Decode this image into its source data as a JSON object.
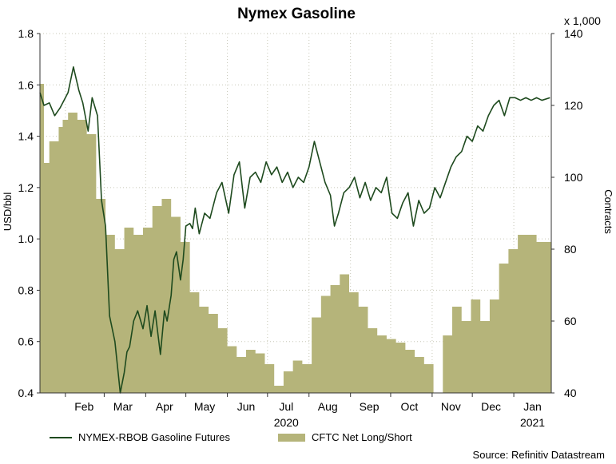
{
  "chart_data": {
    "type": "line",
    "title": "Nymex Gasoline",
    "ylabel": "USD/bbl",
    "y2label": "Contracts",
    "y2_multiplier_label": "x 1,000",
    "ylim": [
      0.4,
      1.8
    ],
    "y2lim": [
      40,
      140
    ],
    "yticks": [
      "0.4",
      "0.6",
      "0.8",
      "1.0",
      "1.2",
      "1.4",
      "1.6",
      "1.8"
    ],
    "y2ticks": [
      "40",
      "60",
      "80",
      "100",
      "120",
      "140"
    ],
    "grid": true,
    "legend_placement": "bottom-left",
    "month_labels": [
      "Feb",
      "Mar",
      "Apr",
      "May",
      "Jun",
      "Jul",
      "Aug",
      "Sep",
      "Oct",
      "Nov",
      "Dec",
      "Jan"
    ],
    "year_labels": [
      "2020",
      "2021"
    ],
    "x_range": [
      "2020-01-13",
      "2021-01-29"
    ],
    "series": [
      {
        "name": "NYMEX-RBOB Gasoline Futures",
        "axis": "left",
        "color": "#1e4a1e",
        "x": [
          "2020-01-13",
          "2020-01-16",
          "2020-01-20",
          "2020-01-24",
          "2020-01-28",
          "2020-02-03",
          "2020-02-07",
          "2020-02-11",
          "2020-02-14",
          "2020-02-18",
          "2020-02-21",
          "2020-02-25",
          "2020-02-28",
          "2020-03-02",
          "2020-03-05",
          "2020-03-07",
          "2020-03-09",
          "2020-03-11",
          "2020-03-13",
          "2020-03-16",
          "2020-03-18",
          "2020-03-20",
          "2020-03-23",
          "2020-03-26",
          "2020-03-30",
          "2020-04-02",
          "2020-04-05",
          "2020-04-08",
          "2020-04-12",
          "2020-04-15",
          "2020-04-17",
          "2020-04-20",
          "2020-04-22",
          "2020-04-24",
          "2020-04-27",
          "2020-04-29",
          "2020-05-01",
          "2020-05-04",
          "2020-05-06",
          "2020-05-08",
          "2020-05-11",
          "2020-05-15",
          "2020-05-19",
          "2020-05-24",
          "2020-05-28",
          "2020-06-02",
          "2020-06-06",
          "2020-06-10",
          "2020-06-14",
          "2020-06-18",
          "2020-06-22",
          "2020-06-26",
          "2020-06-30",
          "2020-07-04",
          "2020-07-08",
          "2020-07-12",
          "2020-07-16",
          "2020-07-20",
          "2020-07-24",
          "2020-07-28",
          "2020-08-01",
          "2020-08-05",
          "2020-08-09",
          "2020-08-13",
          "2020-08-17",
          "2020-08-20",
          "2020-08-23",
          "2020-08-27",
          "2020-08-31",
          "2020-09-04",
          "2020-09-08",
          "2020-09-12",
          "2020-09-16",
          "2020-09-20",
          "2020-09-24",
          "2020-09-28",
          "2020-10-02",
          "2020-10-06",
          "2020-10-10",
          "2020-10-14",
          "2020-10-18",
          "2020-10-22",
          "2020-10-26",
          "2020-10-30",
          "2020-11-03",
          "2020-11-07",
          "2020-11-11",
          "2020-11-15",
          "2020-11-19",
          "2020-11-23",
          "2020-11-27",
          "2020-12-01",
          "2020-12-05",
          "2020-12-09",
          "2020-12-13",
          "2020-12-17",
          "2020-12-21",
          "2020-12-25",
          "2020-12-29",
          "2021-01-02",
          "2021-01-06",
          "2021-01-10",
          "2021-01-14",
          "2021-01-18",
          "2021-01-22",
          "2021-01-28"
        ],
        "values": [
          1.57,
          1.52,
          1.53,
          1.48,
          1.51,
          1.57,
          1.67,
          1.58,
          1.53,
          1.42,
          1.55,
          1.48,
          1.15,
          1.05,
          0.7,
          0.65,
          0.6,
          0.5,
          0.4,
          0.48,
          0.56,
          0.58,
          0.68,
          0.72,
          0.65,
          0.74,
          0.62,
          0.72,
          0.55,
          0.72,
          0.68,
          0.78,
          0.92,
          0.95,
          0.84,
          0.92,
          1.05,
          1.06,
          1.04,
          1.12,
          1.02,
          1.1,
          1.08,
          1.18,
          1.22,
          1.1,
          1.25,
          1.3,
          1.12,
          1.24,
          1.26,
          1.22,
          1.3,
          1.25,
          1.28,
          1.22,
          1.26,
          1.2,
          1.24,
          1.22,
          1.28,
          1.38,
          1.3,
          1.22,
          1.17,
          1.05,
          1.1,
          1.18,
          1.2,
          1.24,
          1.16,
          1.22,
          1.15,
          1.2,
          1.18,
          1.24,
          1.1,
          1.08,
          1.14,
          1.18,
          1.05,
          1.15,
          1.1,
          1.12,
          1.2,
          1.16,
          1.22,
          1.28,
          1.32,
          1.34,
          1.4,
          1.38,
          1.44,
          1.42,
          1.48,
          1.52,
          1.54,
          1.48,
          1.55,
          1.55,
          1.54,
          1.55,
          1.54,
          1.55,
          1.54,
          1.55
        ]
      },
      {
        "name": "CFTC Net Long/Short",
        "axis": "right",
        "color": "#b5b47a",
        "type": "step-area",
        "x": [
          "2020-01-13",
          "2020-01-16",
          "2020-01-20",
          "2020-01-27",
          "2020-01-30",
          "2020-02-03",
          "2020-02-10",
          "2020-02-17",
          "2020-02-24",
          "2020-03-02",
          "2020-03-09",
          "2020-03-16",
          "2020-03-23",
          "2020-03-30",
          "2020-04-06",
          "2020-04-13",
          "2020-04-20",
          "2020-04-27",
          "2020-05-04",
          "2020-05-11",
          "2020-05-18",
          "2020-05-25",
          "2020-06-01",
          "2020-06-08",
          "2020-06-15",
          "2020-06-22",
          "2020-06-29",
          "2020-07-06",
          "2020-07-13",
          "2020-07-20",
          "2020-07-27",
          "2020-08-03",
          "2020-08-10",
          "2020-08-17",
          "2020-08-24",
          "2020-08-31",
          "2020-09-07",
          "2020-09-14",
          "2020-09-21",
          "2020-09-28",
          "2020-10-05",
          "2020-10-12",
          "2020-10-19",
          "2020-10-26",
          "2020-11-02",
          "2020-11-09",
          "2020-11-16",
          "2020-11-23",
          "2020-11-30",
          "2020-12-07",
          "2020-12-14",
          "2020-12-21",
          "2020-12-28",
          "2021-01-04",
          "2021-01-11",
          "2021-01-18",
          "2021-01-25"
        ],
        "values": [
          126,
          104,
          110,
          114,
          116,
          118,
          116,
          112,
          94,
          84,
          80,
          86,
          84,
          86,
          92,
          94,
          89,
          82,
          68,
          64,
          62,
          58,
          53,
          50,
          52,
          51,
          48,
          42,
          46,
          49,
          48,
          61,
          67,
          70,
          73,
          68,
          64,
          58,
          56,
          55,
          54,
          52,
          50,
          48,
          40,
          56,
          64,
          60,
          66,
          60,
          66,
          76,
          80,
          84,
          84,
          82,
          82
        ]
      }
    ]
  },
  "source": "Source: Refinitiv Datastream"
}
